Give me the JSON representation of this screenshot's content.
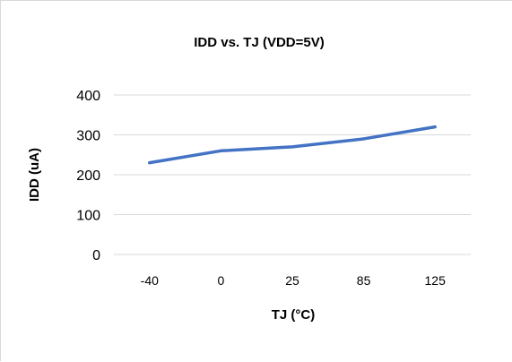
{
  "chart_data": {
    "type": "line",
    "title": "IDD vs. TJ (VDD=5V)",
    "xlabel": "TJ (°C)",
    "ylabel": "IDD (uA)",
    "categories": [
      "-40",
      "0",
      "25",
      "85",
      "125"
    ],
    "series": [
      {
        "values": [
          230,
          260,
          270,
          290,
          320
        ],
        "color": "#4472c4"
      }
    ],
    "ylim": [
      0,
      400
    ],
    "yticks": [
      "0",
      "100",
      "200",
      "300",
      "400"
    ],
    "grid": true,
    "legend": "none"
  }
}
